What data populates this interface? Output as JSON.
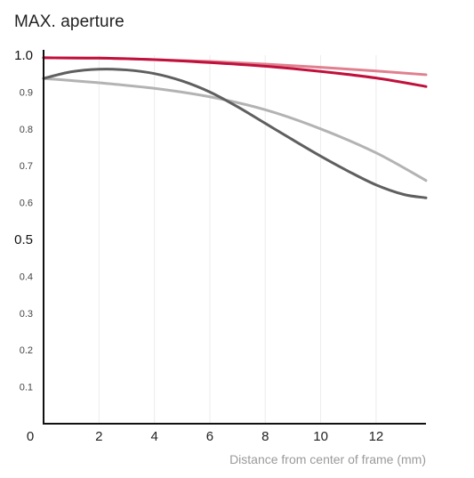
{
  "chart_data": {
    "type": "line",
    "title": "MAX. aperture",
    "xlabel": "Distance from center of frame (mm)",
    "ylabel": "",
    "xlim": [
      0,
      13.8
    ],
    "ylim": [
      0,
      1.0
    ],
    "x_ticks": [
      {
        "value": 0,
        "label": "0"
      },
      {
        "value": 2,
        "label": "2"
      },
      {
        "value": 4,
        "label": "4"
      },
      {
        "value": 6,
        "label": "6"
      },
      {
        "value": 8,
        "label": "8"
      },
      {
        "value": 10,
        "label": "10"
      },
      {
        "value": 12,
        "label": "12"
      }
    ],
    "y_ticks": [
      {
        "value": 0.1,
        "label": "0.1",
        "major": false
      },
      {
        "value": 0.2,
        "label": "0.2",
        "major": false
      },
      {
        "value": 0.3,
        "label": "0.3",
        "major": false
      },
      {
        "value": 0.4,
        "label": "0.4",
        "major": false
      },
      {
        "value": 0.5,
        "label": "0.5",
        "major": true
      },
      {
        "value": 0.6,
        "label": "0.6",
        "major": false
      },
      {
        "value": 0.7,
        "label": "0.7",
        "major": false
      },
      {
        "value": 0.8,
        "label": "0.8",
        "major": false
      },
      {
        "value": 0.9,
        "label": "0.9",
        "major": false
      },
      {
        "value": 1.0,
        "label": "1.0",
        "major": true
      }
    ],
    "grid": {
      "vertical": true,
      "horizontal": false
    },
    "series": [
      {
        "color": "#e0808f",
        "stroke": "solid",
        "x": [
          0,
          2,
          4,
          6,
          8,
          10,
          12,
          13.8
        ],
        "y": [
          0.993,
          0.992,
          0.988,
          0.983,
          0.976,
          0.967,
          0.957,
          0.947
        ]
      },
      {
        "color": "#c0103c",
        "stroke": "solid",
        "x": [
          0,
          2,
          4,
          6,
          8,
          10,
          12,
          13.8
        ],
        "y": [
          0.993,
          0.992,
          0.988,
          0.98,
          0.97,
          0.956,
          0.938,
          0.915
        ]
      },
      {
        "color": "#b3b3b3",
        "stroke": "solid",
        "x": [
          0,
          2,
          4,
          6,
          8,
          10,
          12,
          13.8
        ],
        "y": [
          0.937,
          0.925,
          0.91,
          0.887,
          0.852,
          0.8,
          0.735,
          0.66
        ]
      },
      {
        "color": "#5f5f5f",
        "stroke": "solid",
        "x": [
          0,
          1,
          2,
          3,
          4,
          5,
          6,
          7,
          8,
          9,
          10,
          11,
          12,
          13,
          13.8
        ],
        "y": [
          0.937,
          0.955,
          0.962,
          0.96,
          0.95,
          0.93,
          0.9,
          0.86,
          0.815,
          0.77,
          0.726,
          0.685,
          0.648,
          0.622,
          0.613
        ]
      }
    ]
  }
}
